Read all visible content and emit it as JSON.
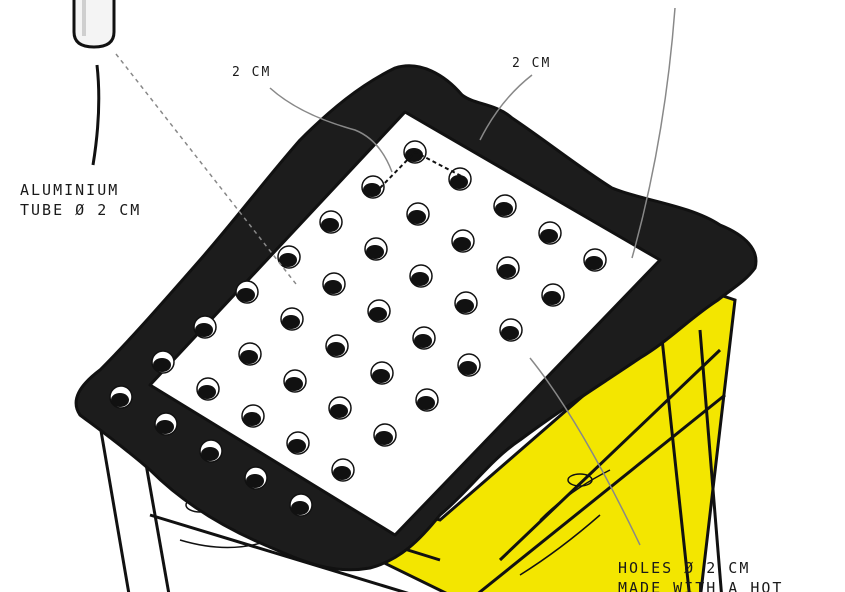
{
  "labels": {
    "tube_line1": "ALUMINIUM",
    "tube_line2": "TUBE ø 2 CM",
    "dim_left": "2 CM",
    "dim_right": "2 CM",
    "holes_line1": "HOLES ø 2 CM",
    "holes_line2": "MADE WITH A HOT"
  },
  "colors": {
    "wood": "#f3e600",
    "liner": "#1c1c1c",
    "board": "#ffffff",
    "outline": "#111111",
    "leader": "#888888"
  }
}
